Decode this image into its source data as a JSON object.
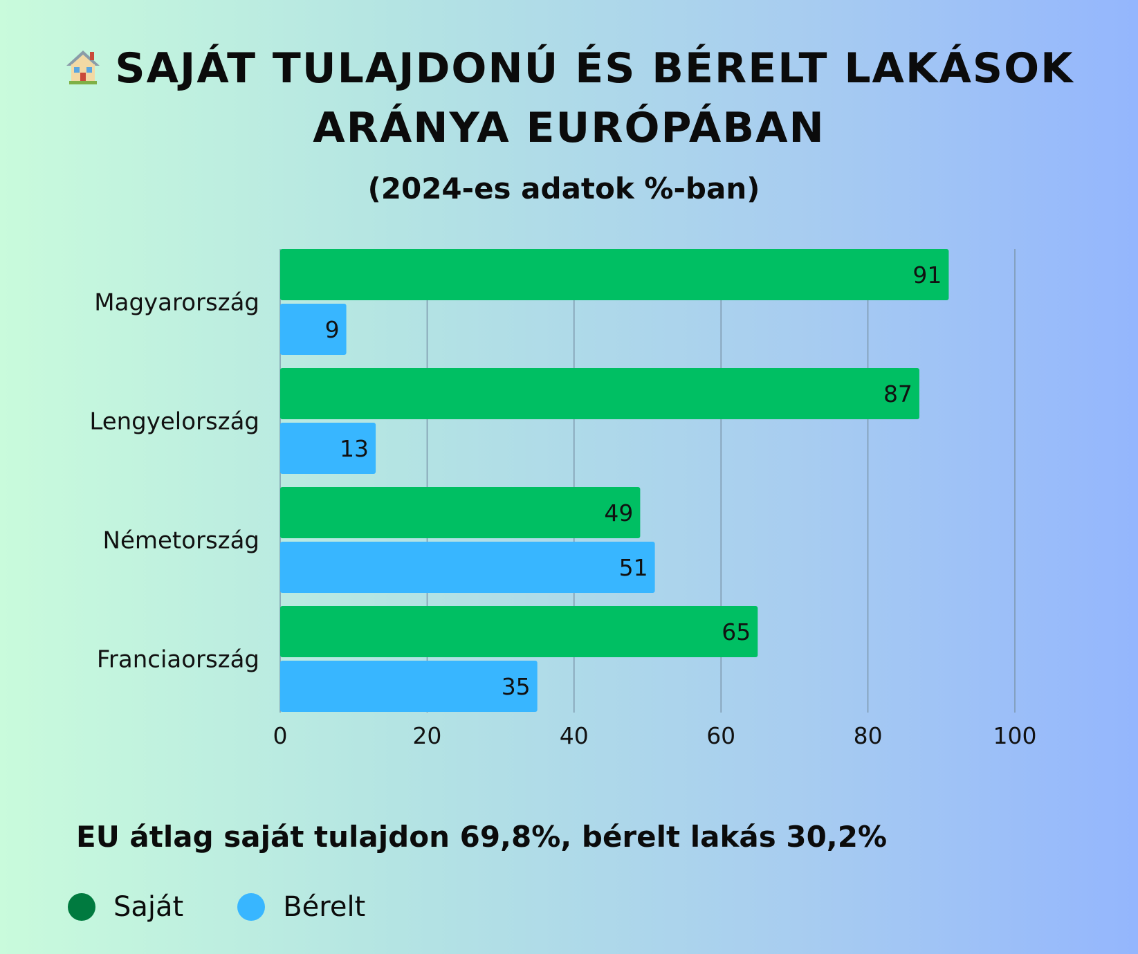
{
  "title": {
    "icon": "house-emoji-icon",
    "line1": "SAJÁT TULAJDONÚ ÉS BÉRELT LAKÁSOK",
    "line2": "ARÁNYA EURÓPÁBAN"
  },
  "subtitle": "(2024-es adatok %-ban)",
  "footnote": "EU átlag saját tulajdon 69,8%, bérelt lakás 30,2%",
  "colors": {
    "own_bar": "#00bf63",
    "rent_bar": "#38b6ff",
    "own_legend": "#007a3f",
    "rent_legend": "#38b6ff",
    "grid": "#7a93a8"
  },
  "legend": [
    {
      "label": "Saját",
      "color": "#007a3f"
    },
    {
      "label": "Bérelt",
      "color": "#38b6ff"
    }
  ],
  "chart_data": {
    "type": "bar",
    "orientation": "horizontal",
    "categories": [
      "Magyarország",
      "Lengyelország",
      "Németország",
      "Franciaország"
    ],
    "series": [
      {
        "name": "Saját",
        "values": [
          91,
          87,
          49,
          65
        ],
        "color": "#00bf63"
      },
      {
        "name": "Bérelt",
        "values": [
          9,
          13,
          51,
          35
        ],
        "color": "#38b6ff"
      }
    ],
    "xlim": [
      0,
      100
    ],
    "xticks": [
      "0",
      "20",
      "40",
      "60",
      "80",
      "100"
    ],
    "grid": true,
    "legend_position": "bottom-left",
    "title": "SAJÁT TULAJDONÚ ÉS BÉRELT LAKÁSOK ARÁNYA EURÓPÁBAN",
    "subtitle": "(2024-es adatok %-ban)",
    "xlabel": "",
    "ylabel": ""
  }
}
